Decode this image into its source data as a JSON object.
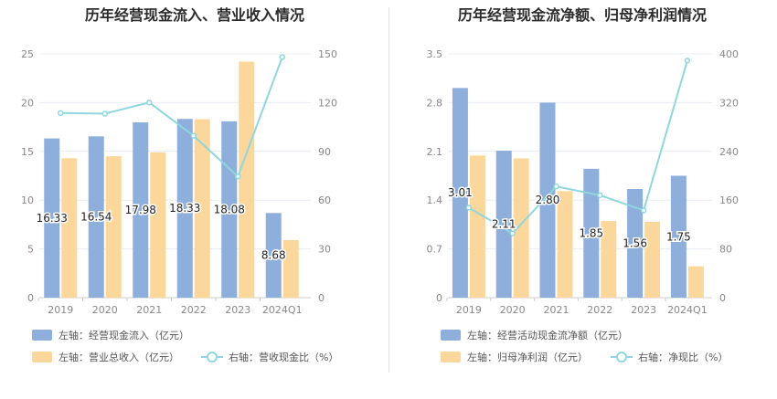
{
  "chart_data": [
    {
      "type": "bar",
      "title": "历年经营现金流入、营业收入情况",
      "categories": [
        "2019",
        "2020",
        "2021",
        "2022",
        "2023",
        "2024Q1"
      ],
      "ylim_left": [
        0,
        25
      ],
      "left_ticks": [
        "0",
        "5",
        "10",
        "15",
        "20",
        "25"
      ],
      "ylim_right": [
        0,
        150
      ],
      "right_ticks": [
        "0",
        "30",
        "60",
        "90",
        "120",
        "150"
      ],
      "series": [
        {
          "name": "左轴：经营现金流入（亿元）",
          "axis": "left",
          "type": "bar",
          "color": "#8eaedc",
          "values": [
            16.33,
            16.54,
            17.98,
            18.33,
            18.08,
            8.68
          ],
          "labels": [
            "16.33",
            "16.54",
            "17.98",
            "18.33",
            "18.08",
            "8.68"
          ]
        },
        {
          "name": "左轴：营业总收入（亿元）",
          "axis": "left",
          "type": "bar",
          "color": "#fcd79b",
          "values": [
            14.3,
            14.5,
            14.9,
            18.3,
            24.2,
            5.9
          ]
        },
        {
          "name": "右轴：营收现金比（%）",
          "axis": "right",
          "type": "line",
          "color": "#8fd6de",
          "values": [
            113.6,
            113.2,
            120.1,
            99.6,
            74.6,
            148.0
          ]
        }
      ],
      "grid": true,
      "legend": "bottom-left"
    },
    {
      "type": "bar",
      "title": "历年经营现金流净额、归母净利润情况",
      "categories": [
        "2019",
        "2020",
        "2021",
        "2022",
        "2023",
        "2024Q1"
      ],
      "ylim_left": [
        0,
        3.5
      ],
      "left_ticks": [
        "0",
        "0.7",
        "1.4",
        "2.1",
        "2.8",
        "3.5"
      ],
      "ylim_right": [
        0,
        400
      ],
      "right_ticks": [
        "0",
        "80",
        "160",
        "240",
        "320",
        "400"
      ],
      "series": [
        {
          "name": "左轴：经营活动现金流净额（亿元）",
          "axis": "left",
          "type": "bar",
          "color": "#8eaedc",
          "values": [
            3.01,
            2.11,
            2.8,
            1.85,
            1.56,
            1.75
          ],
          "labels": [
            "3.01",
            "2.11",
            "2.80",
            "1.85",
            "1.56",
            "1.75"
          ]
        },
        {
          "name": "左轴：归母净利润（亿元）",
          "axis": "left",
          "type": "bar",
          "color": "#fcd79b",
          "values": [
            2.04,
            2.0,
            1.53,
            1.1,
            1.09,
            0.45
          ]
        },
        {
          "name": "右轴：净现比（%）",
          "axis": "right",
          "type": "line",
          "color": "#8fd6de",
          "values": [
            147.6,
            105.5,
            182.4,
            168.0,
            143.1,
            389.0
          ]
        }
      ],
      "grid": true,
      "legend": "bottom-left"
    }
  ]
}
